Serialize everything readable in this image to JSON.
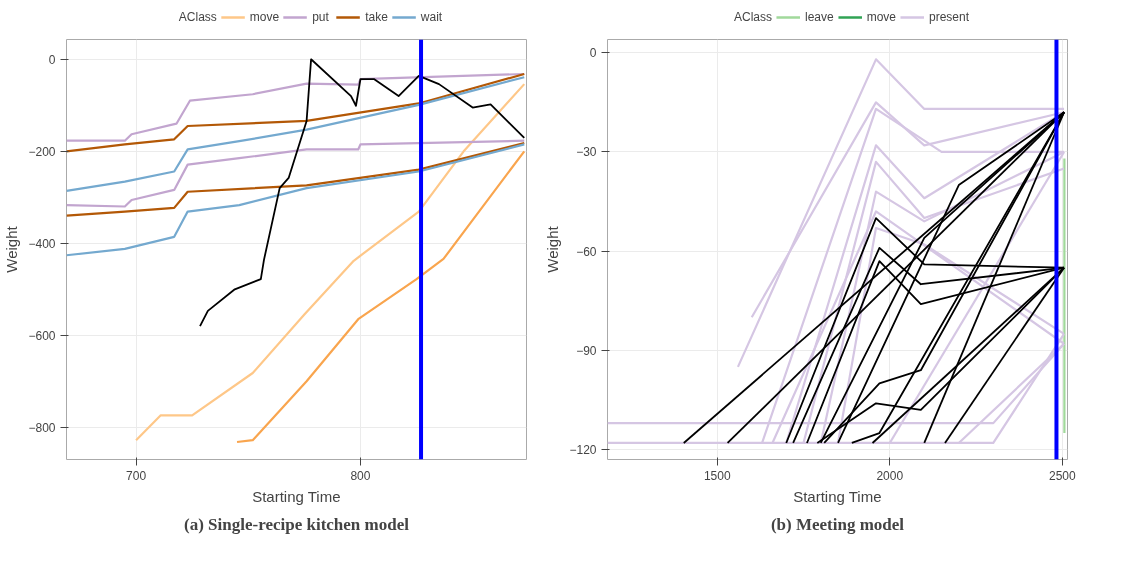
{
  "chart_data": [
    {
      "type": "line",
      "title": "(a) Single-recipe kitchen model",
      "xlabel": "Starting Time",
      "ylabel": "Weight",
      "legend_title": "AClass",
      "legend": "top",
      "grid": true,
      "xlim": [
        669,
        874
      ],
      "xticks": [
        700,
        800
      ],
      "ylim": [
        -870,
        43
      ],
      "yticks": [
        0,
        -200,
        -400,
        -600,
        -800
      ],
      "ref_lines": [
        {
          "axis": "x",
          "value": 827,
          "color": "#0000ff"
        }
      ],
      "series": [
        {
          "name": "move",
          "color": "#fec788",
          "x": [
            700,
            711,
            725,
            752,
            775,
            797,
            826,
            846,
            873
          ],
          "values": [
            -828,
            -774,
            -774,
            -682,
            -555,
            -438,
            -331,
            -200,
            -54
          ]
        },
        {
          "color": "#f9a54e",
          "x": [
            745,
            752,
            776,
            799,
            825,
            837,
            873
          ],
          "values": [
            -832,
            -828,
            -700,
            -565,
            -478,
            -434,
            -200
          ]
        },
        {
          "name": "put",
          "color": "#c2a5cf",
          "x": [
            669,
            695,
            698,
            718,
            724,
            752,
            776,
            799,
            800,
            873
          ],
          "values": [
            -177,
            -177,
            -163,
            -140,
            -90,
            -76,
            -53,
            -55,
            -43,
            -32
          ]
        },
        {
          "color": "#c2a5cf",
          "x": [
            669,
            695,
            698,
            717,
            723,
            746,
            776,
            799,
            800,
            873
          ],
          "values": [
            -317,
            -320,
            -306,
            -284,
            -229,
            -215,
            -196,
            -196,
            -185,
            -177
          ]
        },
        {
          "name": "take",
          "color": "#b35806",
          "x": [
            669,
            695,
            717,
            723,
            776,
            826,
            873
          ],
          "values": [
            -200,
            -185,
            -174,
            -145,
            -134,
            -96,
            -32
          ]
        },
        {
          "color": "#b35806",
          "x": [
            669,
            695,
            717,
            723,
            776,
            826,
            873
          ],
          "values": [
            -340,
            -331,
            -323,
            -288,
            -274,
            -240,
            -182
          ]
        },
        {
          "name": "wait",
          "color": "#74a9cf",
          "x": [
            669,
            695,
            717,
            723,
            746,
            776,
            826,
            873
          ],
          "values": [
            -286,
            -266,
            -244,
            -196,
            -178,
            -153,
            -99,
            -39
          ]
        },
        {
          "color": "#74a9cf",
          "x": [
            669,
            695,
            717,
            723,
            746,
            776,
            826,
            873
          ],
          "values": [
            -426,
            -412,
            -386,
            -331,
            -317,
            -280,
            -244,
            -185
          ]
        },
        {
          "color": "#000000",
          "x": [
            728.5,
            732,
            744,
            755.6,
            757,
            764,
            768,
            776,
            778,
            795.8,
            798,
            800,
            806,
            817,
            826,
            835,
            850,
            858,
            873
          ],
          "values": [
            -580,
            -547,
            -500,
            -478,
            -436,
            -280,
            -258,
            -134,
            0,
            -80,
            -101,
            -43,
            -43,
            -80,
            -36,
            -54,
            -105,
            -98,
            -171
          ]
        }
      ]
    },
    {
      "type": "line",
      "title": "(b) Meeting model",
      "xlabel": "Starting Time",
      "ylabel": "Weight",
      "legend_title": "AClass",
      "legend": "top",
      "grid": true,
      "xlim": [
        1182,
        2515
      ],
      "xticks": [
        1500,
        2000,
        2500
      ],
      "ylim": [
        -123,
        4
      ],
      "yticks": [
        0,
        -30,
        -60,
        -90,
        -120
      ],
      "ref_lines": [
        {
          "axis": "x",
          "value": 2483,
          "color": "#0000ff"
        }
      ],
      "series": [
        {
          "name": "leave",
          "color": "#a1d99b",
          "x": [
            2506,
            2506
          ],
          "values": [
            -32,
            -115
          ]
        },
        {
          "name": "move",
          "color": "#31a354"
        },
        {
          "name": "present",
          "color": "#d5c6e3",
          "x": [
            1560,
            1960,
            2100,
            2505
          ],
          "values": [
            -95,
            -2,
            -17,
            -17
          ]
        },
        {
          "color": "#d5c6e3",
          "x": [
            1600,
            1960,
            2100,
            2505
          ],
          "values": [
            -80,
            -15,
            -28,
            -18
          ]
        },
        {
          "color": "#d5c6e3",
          "x": [
            1630,
            1960,
            2150,
            2505
          ],
          "values": [
            -118,
            -17,
            -30,
            -30
          ]
        },
        {
          "color": "#d5c6e3",
          "x": [
            1700,
            1960,
            2100,
            2505
          ],
          "values": [
            -118,
            -28,
            -44,
            -18
          ]
        },
        {
          "color": "#d5c6e3",
          "x": [
            1750,
            1960,
            2100,
            2505
          ],
          "values": [
            -118,
            -33,
            -50,
            -35
          ]
        },
        {
          "color": "#d5c6e3",
          "x": [
            1182,
            2300,
            2505
          ],
          "values": [
            -112,
            -112,
            -88
          ]
        },
        {
          "color": "#d5c6e3",
          "x": [
            1182,
            2300,
            2505
          ],
          "values": [
            -118,
            -118,
            -85
          ]
        },
        {
          "color": "#d5c6e3",
          "x": [
            1800,
            1960,
            2100,
            2505
          ],
          "values": [
            -118,
            -42,
            -51,
            -30
          ]
        },
        {
          "color": "#d5c6e3",
          "x": [
            1850,
            1960,
            2100,
            2505
          ],
          "values": [
            -118,
            -53,
            -58,
            -85
          ]
        },
        {
          "color": "#d5c6e3",
          "x": [
            2000,
            2505
          ],
          "values": [
            -118,
            -30
          ]
        },
        {
          "color": "#d5c6e3",
          "x": [
            2200,
            2505
          ],
          "values": [
            -118,
            -88
          ]
        },
        {
          "color": "#d5c6e3",
          "x": [
            1660,
            1960,
            2505
          ],
          "values": [
            -118,
            -48,
            -88
          ]
        },
        {
          "color": "#000000",
          "x": [
            1403,
            2505
          ],
          "values": [
            -118,
            -18
          ]
        },
        {
          "color": "#000000",
          "x": [
            1530,
            2505
          ],
          "values": [
            -118,
            -18
          ]
        },
        {
          "color": "#000000",
          "x": [
            1700,
            1960,
            2100,
            2505
          ],
          "values": [
            -118,
            -50,
            -64,
            -65
          ]
        },
        {
          "color": "#000000",
          "x": [
            1720,
            1970,
            2090,
            2505
          ],
          "values": [
            -118,
            -59,
            -70,
            -65
          ]
        },
        {
          "color": "#000000",
          "x": [
            1760,
            1970,
            2090,
            2505
          ],
          "values": [
            -118,
            -63,
            -76,
            -65
          ]
        },
        {
          "color": "#000000",
          "x": [
            1790,
            1960,
            2090,
            2505
          ],
          "values": [
            -118,
            -106,
            -108,
            -65
          ]
        },
        {
          "color": "#000000",
          "x": [
            1810,
            1970,
            2090,
            2505
          ],
          "values": [
            -118,
            -100,
            -96,
            -18
          ]
        },
        {
          "color": "#000000",
          "x": [
            1890,
            1970,
            2505
          ],
          "values": [
            -118,
            -115,
            -18
          ]
        },
        {
          "color": "#000000",
          "x": [
            1800,
            2100,
            2505
          ],
          "values": [
            -118,
            -56,
            -18
          ]
        },
        {
          "color": "#000000",
          "x": [
            1850,
            2200,
            2505
          ],
          "values": [
            -118,
            -40,
            -18
          ]
        },
        {
          "color": "#000000",
          "x": [
            2100,
            2505
          ],
          "values": [
            -118,
            -18
          ]
        },
        {
          "color": "#000000",
          "x": [
            2160,
            2505
          ],
          "values": [
            -118,
            -65
          ]
        },
        {
          "color": "#000000",
          "x": [
            1950,
            2505
          ],
          "values": [
            -118,
            -65
          ]
        }
      ]
    }
  ]
}
